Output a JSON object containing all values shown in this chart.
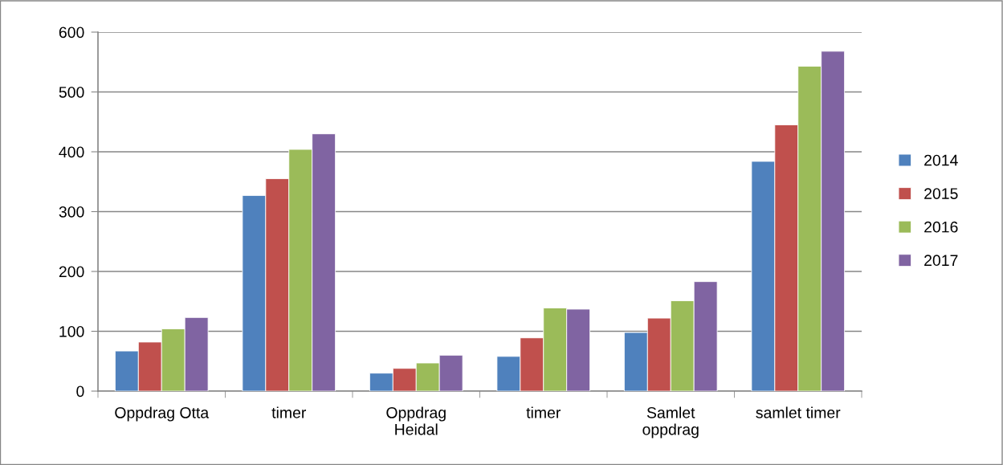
{
  "chart_data": {
    "type": "bar",
    "categories": [
      "Oppdrag Otta",
      "timer",
      "Oppdrag\nHeidal",
      "timer",
      "Samlet\noppdrag",
      "samlet timer"
    ],
    "series": [
      {
        "name": "2014",
        "color": "#4f81bd",
        "values": [
          67,
          327,
          30,
          58,
          98,
          384
        ]
      },
      {
        "name": "2015",
        "color": "#c0504d",
        "values": [
          82,
          355,
          38,
          89,
          122,
          445
        ]
      },
      {
        "name": "2016",
        "color": "#9bbb59",
        "values": [
          104,
          404,
          47,
          139,
          151,
          543
        ]
      },
      {
        "name": "2017",
        "color": "#8064a2",
        "values": [
          123,
          430,
          60,
          137,
          183,
          568
        ]
      }
    ],
    "ylim": [
      0,
      600
    ],
    "yticks": [
      0,
      100,
      200,
      300,
      400,
      500,
      600
    ],
    "grid": "y",
    "legend": "right"
  }
}
